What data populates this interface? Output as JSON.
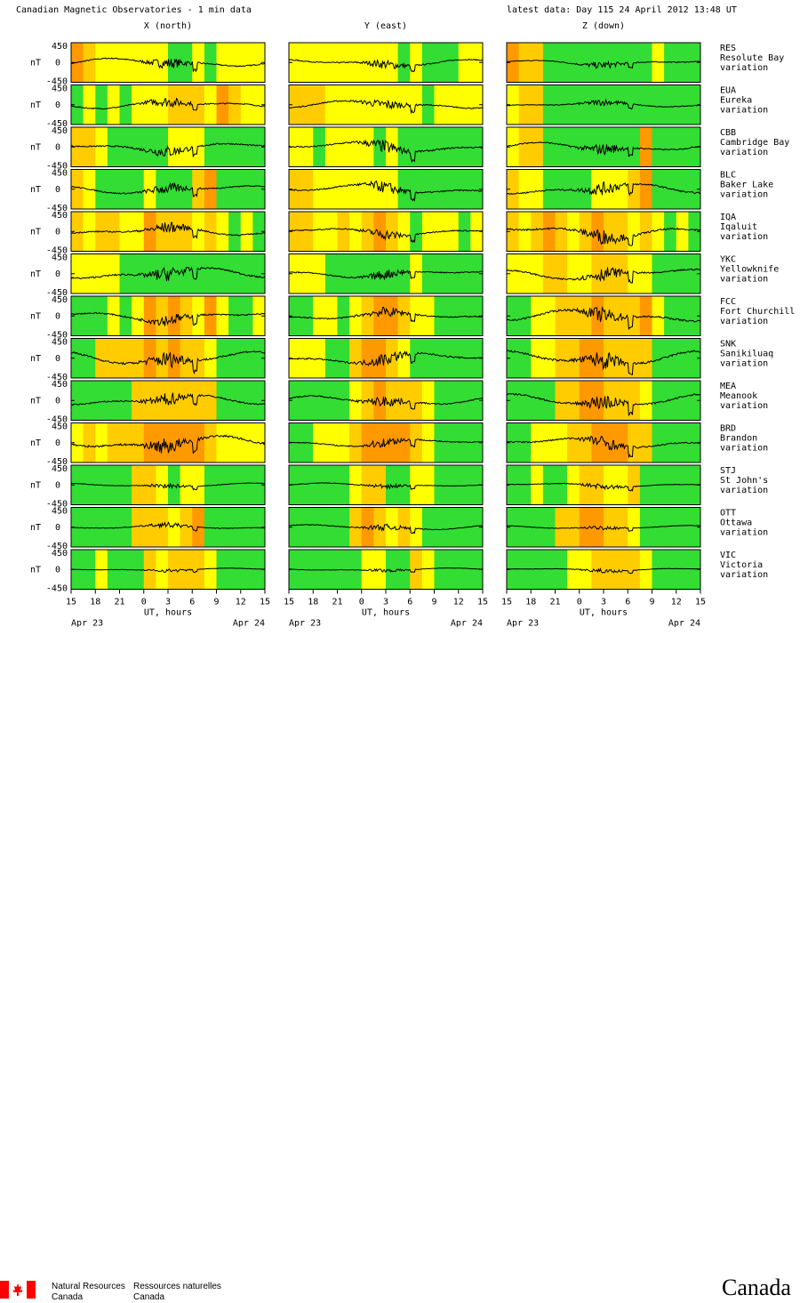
{
  "header": {
    "title": "Canadian Magnetic Observatories - 1 min data",
    "latest": "latest data: Day 115   24 April 2012 13:48 UT"
  },
  "chart_data": {
    "type": "line",
    "columns": [
      "X (north)",
      "Y (east)",
      "Z (down)"
    ],
    "unit": "nT",
    "ylim": [
      -450,
      450
    ],
    "yticks": [
      "450",
      "0",
      "-450"
    ],
    "x_ticks": [
      "15",
      "18",
      "21",
      "0",
      "3",
      "6",
      "9",
      "12",
      "15"
    ],
    "xlabel": "UT, hours",
    "date_start": "Apr 23",
    "date_end": "Apr 24",
    "activity_colors": {
      "quiet": "#33dd33",
      "unsettled": "#ffff00",
      "active": "#ffcc00",
      "storm": "#ff9900"
    },
    "stations": [
      {
        "code": "RES",
        "name": "Resolute Bay",
        "label": "variation",
        "amp": [
          180,
          150,
          120
        ],
        "bands": [
          [
            "#ff9900",
            "#ffcc00",
            "#ffff00",
            "#ffff00",
            "#ffff00",
            "#ffff00",
            "#ffff00",
            "#ffff00",
            "#33dd33",
            "#33dd33",
            "#ffff00",
            "#33dd33",
            "#ffff00",
            "#ffff00",
            "#ffff00",
            "#ffff00"
          ],
          [
            "#ffff00",
            "#ffff00",
            "#ffff00",
            "#ffff00",
            "#ffff00",
            "#ffff00",
            "#ffff00",
            "#ffff00",
            "#ffff00",
            "#33dd33",
            "#ffff00",
            "#33dd33",
            "#33dd33",
            "#33dd33",
            "#ffff00",
            "#ffff00"
          ],
          [
            "#ff9900",
            "#ffcc00",
            "#ffcc00",
            "#33dd33",
            "#33dd33",
            "#33dd33",
            "#33dd33",
            "#33dd33",
            "#33dd33",
            "#33dd33",
            "#33dd33",
            "#33dd33",
            "#ffff00",
            "#33dd33",
            "#33dd33",
            "#33dd33"
          ]
        ]
      },
      {
        "code": "EUA",
        "name": "Eureka",
        "label": "variation",
        "amp": [
          170,
          170,
          110
        ],
        "bands": [
          [
            "#33dd33",
            "#ffff00",
            "#33dd33",
            "#ffff00",
            "#33dd33",
            "#ffff00",
            "#ffff00",
            "#ffff00",
            "#ffcc00",
            "#ffcc00",
            "#ffcc00",
            "#ffff00",
            "#ff9900",
            "#ffcc00",
            "#ffff00",
            "#ffff00"
          ],
          [
            "#ffcc00",
            "#ffcc00",
            "#ffcc00",
            "#ffff00",
            "#ffff00",
            "#ffff00",
            "#ffff00",
            "#ffff00",
            "#ffff00",
            "#ffff00",
            "#ffff00",
            "#33dd33",
            "#ffff00",
            "#ffff00",
            "#ffff00",
            "#ffff00"
          ],
          [
            "#ffff00",
            "#ffcc00",
            "#ffcc00",
            "#33dd33",
            "#33dd33",
            "#33dd33",
            "#33dd33",
            "#33dd33",
            "#33dd33",
            "#33dd33",
            "#33dd33",
            "#33dd33",
            "#33dd33",
            "#33dd33",
            "#33dd33",
            "#33dd33"
          ]
        ]
      },
      {
        "code": "CBB",
        "name": "Cambridge Bay",
        "label": "variation",
        "amp": [
          200,
          220,
          190
        ],
        "bands": [
          [
            "#ffcc00",
            "#ffcc00",
            "#ffff00",
            "#33dd33",
            "#33dd33",
            "#33dd33",
            "#33dd33",
            "#33dd33",
            "#ffff00",
            "#ffff00",
            "#ffff00",
            "#33dd33",
            "#33dd33",
            "#33dd33",
            "#33dd33",
            "#33dd33"
          ],
          [
            "#ffff00",
            "#ffff00",
            "#33dd33",
            "#ffff00",
            "#ffff00",
            "#ffff00",
            "#ffff00",
            "#33dd33",
            "#ffff00",
            "#33dd33",
            "#33dd33",
            "#33dd33",
            "#33dd33",
            "#33dd33",
            "#33dd33",
            "#33dd33"
          ],
          [
            "#ffff00",
            "#ffcc00",
            "#ffcc00",
            "#33dd33",
            "#33dd33",
            "#33dd33",
            "#33dd33",
            "#33dd33",
            "#33dd33",
            "#33dd33",
            "#33dd33",
            "#ff9900",
            "#33dd33",
            "#33dd33",
            "#33dd33",
            "#33dd33"
          ]
        ]
      },
      {
        "code": "BLC",
        "name": "Baker Lake",
        "label": "variation",
        "amp": [
          180,
          200,
          220
        ],
        "bands": [
          [
            "#ffcc00",
            "#ffff00",
            "#33dd33",
            "#33dd33",
            "#33dd33",
            "#33dd33",
            "#ffff00",
            "#33dd33",
            "#33dd33",
            "#33dd33",
            "#ffcc00",
            "#ff9900",
            "#33dd33",
            "#33dd33",
            "#33dd33",
            "#33dd33"
          ],
          [
            "#ffcc00",
            "#ffcc00",
            "#ffff00",
            "#ffff00",
            "#ffff00",
            "#ffff00",
            "#ffff00",
            "#ffff00",
            "#ffff00",
            "#33dd33",
            "#33dd33",
            "#33dd33",
            "#33dd33",
            "#33dd33",
            "#33dd33",
            "#33dd33"
          ],
          [
            "#ffcc00",
            "#ffff00",
            "#ffff00",
            "#33dd33",
            "#33dd33",
            "#33dd33",
            "#33dd33",
            "#ffff00",
            "#ffff00",
            "#ffff00",
            "#ffcc00",
            "#ff9900",
            "#33dd33",
            "#33dd33",
            "#33dd33",
            "#33dd33"
          ]
        ]
      },
      {
        "code": "IQA",
        "name": "Iqaluit",
        "label": "variation",
        "amp": [
          190,
          170,
          260
        ],
        "bands": [
          [
            "#ffcc00",
            "#ffff00",
            "#ffcc00",
            "#ffcc00",
            "#ffff00",
            "#ffff00",
            "#ff9900",
            "#ffcc00",
            "#ffcc00",
            "#ffcc00",
            "#ffff00",
            "#ffcc00",
            "#ffff00",
            "#33dd33",
            "#ffff00",
            "#33dd33"
          ],
          [
            "#ffcc00",
            "#ffcc00",
            "#ffff00",
            "#ffff00",
            "#ffcc00",
            "#ffff00",
            "#ffcc00",
            "#ff9900",
            "#ffcc00",
            "#ffff00",
            "#33dd33",
            "#ffff00",
            "#ffff00",
            "#ffff00",
            "#33dd33",
            "#ffff00"
          ],
          [
            "#ffcc00",
            "#ffff00",
            "#ffcc00",
            "#ff9900",
            "#ffcc00",
            "#ffff00",
            "#ffcc00",
            "#ff9900",
            "#ffcc00",
            "#ffcc00",
            "#ffff00",
            "#ffcc00",
            "#ffff00",
            "#33dd33",
            "#ffff00",
            "#33dd33"
          ]
        ]
      },
      {
        "code": "YKC",
        "name": "Yellowknife",
        "label": "variation",
        "amp": [
          240,
          160,
          230
        ],
        "bands": [
          [
            "#ffff00",
            "#ffff00",
            "#ffff00",
            "#ffff00",
            "#33dd33",
            "#33dd33",
            "#33dd33",
            "#33dd33",
            "#33dd33",
            "#33dd33",
            "#33dd33",
            "#33dd33",
            "#33dd33",
            "#33dd33",
            "#33dd33",
            "#33dd33"
          ],
          [
            "#ffff00",
            "#ffff00",
            "#ffff00",
            "#33dd33",
            "#33dd33",
            "#33dd33",
            "#33dd33",
            "#33dd33",
            "#33dd33",
            "#33dd33",
            "#ffff00",
            "#33dd33",
            "#33dd33",
            "#33dd33",
            "#33dd33",
            "#33dd33"
          ],
          [
            "#ffff00",
            "#ffff00",
            "#ffff00",
            "#ffcc00",
            "#ffcc00",
            "#ffff00",
            "#ffff00",
            "#ffcc00",
            "#ffcc00",
            "#ffcc00",
            "#ffff00",
            "#ffff00",
            "#33dd33",
            "#33dd33",
            "#33dd33",
            "#33dd33"
          ]
        ]
      },
      {
        "code": "FCC",
        "name": "Fort Churchill",
        "label": "variation",
        "amp": [
          200,
          170,
          260
        ],
        "bands": [
          [
            "#33dd33",
            "#33dd33",
            "#33dd33",
            "#ffff00",
            "#33dd33",
            "#ffff00",
            "#ff9900",
            "#ffcc00",
            "#ff9900",
            "#ffcc00",
            "#ffff00",
            "#ff9900",
            "#ffff00",
            "#33dd33",
            "#33dd33",
            "#ffff00"
          ],
          [
            "#33dd33",
            "#33dd33",
            "#ffff00",
            "#ffff00",
            "#33dd33",
            "#ffff00",
            "#ffcc00",
            "#ff9900",
            "#ff9900",
            "#ffcc00",
            "#ffff00",
            "#ffff00",
            "#33dd33",
            "#33dd33",
            "#33dd33",
            "#33dd33"
          ],
          [
            "#33dd33",
            "#33dd33",
            "#ffff00",
            "#ffff00",
            "#ffcc00",
            "#ffcc00",
            "#ffcc00",
            "#ff9900",
            "#ffcc00",
            "#ffcc00",
            "#ffcc00",
            "#ff9900",
            "#ffff00",
            "#33dd33",
            "#33dd33",
            "#33dd33"
          ]
        ]
      },
      {
        "code": "SNK",
        "name": "Sanikiluaq",
        "label": "variation",
        "amp": [
          280,
          230,
          300
        ],
        "bands": [
          [
            "#33dd33",
            "#33dd33",
            "#ffcc00",
            "#ffcc00",
            "#ffcc00",
            "#ffcc00",
            "#ff9900",
            "#ffcc00",
            "#ff9900",
            "#ffcc00",
            "#ffcc00",
            "#ffff00",
            "#33dd33",
            "#33dd33",
            "#33dd33",
            "#33dd33"
          ],
          [
            "#ffff00",
            "#ffff00",
            "#ffff00",
            "#33dd33",
            "#33dd33",
            "#ffcc00",
            "#ff9900",
            "#ff9900",
            "#ffcc00",
            "#ffff00",
            "#33dd33",
            "#33dd33",
            "#33dd33",
            "#33dd33",
            "#33dd33",
            "#33dd33"
          ],
          [
            "#33dd33",
            "#33dd33",
            "#ffff00",
            "#ffff00",
            "#ffcc00",
            "#ffcc00",
            "#ff9900",
            "#ff9900",
            "#ffcc00",
            "#ffcc00",
            "#ffcc00",
            "#ffcc00",
            "#33dd33",
            "#33dd33",
            "#33dd33",
            "#33dd33"
          ]
        ]
      },
      {
        "code": "MEA",
        "name": "Meanook",
        "label": "variation",
        "amp": [
          220,
          190,
          260
        ],
        "bands": [
          [
            "#33dd33",
            "#33dd33",
            "#33dd33",
            "#33dd33",
            "#33dd33",
            "#ffcc00",
            "#ffcc00",
            "#ffcc00",
            "#ffcc00",
            "#ffcc00",
            "#ffcc00",
            "#ffcc00",
            "#33dd33",
            "#33dd33",
            "#33dd33",
            "#33dd33"
          ],
          [
            "#33dd33",
            "#33dd33",
            "#33dd33",
            "#33dd33",
            "#33dd33",
            "#ffff00",
            "#ffcc00",
            "#ff9900",
            "#ffcc00",
            "#ffcc00",
            "#ffcc00",
            "#ffff00",
            "#33dd33",
            "#33dd33",
            "#33dd33",
            "#33dd33"
          ],
          [
            "#33dd33",
            "#33dd33",
            "#33dd33",
            "#33dd33",
            "#ffcc00",
            "#ffcc00",
            "#ff9900",
            "#ff9900",
            "#ffcc00",
            "#ffcc00",
            "#ffcc00",
            "#ffff00",
            "#33dd33",
            "#33dd33",
            "#33dd33",
            "#33dd33"
          ]
        ]
      },
      {
        "code": "BRD",
        "name": "Brandon",
        "label": "variation",
        "amp": [
          280,
          160,
          220
        ],
        "bands": [
          [
            "#ffff00",
            "#ffcc00",
            "#ffff00",
            "#ffcc00",
            "#ffcc00",
            "#ffcc00",
            "#ff9900",
            "#ff9900",
            "#ff9900",
            "#ff9900",
            "#ff9900",
            "#ffcc00",
            "#ffff00",
            "#ffff00",
            "#ffff00",
            "#ffff00"
          ],
          [
            "#33dd33",
            "#33dd33",
            "#ffff00",
            "#ffff00",
            "#ffff00",
            "#ffcc00",
            "#ff9900",
            "#ff9900",
            "#ff9900",
            "#ff9900",
            "#ffcc00",
            "#ffff00",
            "#33dd33",
            "#33dd33",
            "#33dd33",
            "#33dd33"
          ],
          [
            "#33dd33",
            "#33dd33",
            "#ffff00",
            "#ffff00",
            "#ffff00",
            "#ffcc00",
            "#ffcc00",
            "#ff9900",
            "#ff9900",
            "#ff9900",
            "#ffcc00",
            "#ffcc00",
            "#33dd33",
            "#33dd33",
            "#33dd33",
            "#33dd33"
          ]
        ]
      },
      {
        "code": "STJ",
        "name": "St John's",
        "label": "variation",
        "amp": [
          80,
          80,
          90
        ],
        "bands": [
          [
            "#33dd33",
            "#33dd33",
            "#33dd33",
            "#33dd33",
            "#33dd33",
            "#ffcc00",
            "#ffcc00",
            "#ffff00",
            "#33dd33",
            "#ffff00",
            "#ffff00",
            "#33dd33",
            "#33dd33",
            "#33dd33",
            "#33dd33",
            "#33dd33"
          ],
          [
            "#33dd33",
            "#33dd33",
            "#33dd33",
            "#33dd33",
            "#33dd33",
            "#ffff00",
            "#ffcc00",
            "#ffcc00",
            "#33dd33",
            "#33dd33",
            "#ffff00",
            "#ffff00",
            "#33dd33",
            "#33dd33",
            "#33dd33",
            "#33dd33"
          ],
          [
            "#33dd33",
            "#33dd33",
            "#ffff00",
            "#33dd33",
            "#33dd33",
            "#ffff00",
            "#ffcc00",
            "#ffcc00",
            "#ffff00",
            "#ffff00",
            "#ffcc00",
            "#33dd33",
            "#33dd33",
            "#33dd33",
            "#33dd33",
            "#33dd33"
          ]
        ]
      },
      {
        "code": "OTT",
        "name": "Ottawa",
        "label": "variation",
        "amp": [
          90,
          110,
          70
        ],
        "bands": [
          [
            "#33dd33",
            "#33dd33",
            "#33dd33",
            "#33dd33",
            "#33dd33",
            "#ffcc00",
            "#ffcc00",
            "#ffcc00",
            "#ffff00",
            "#ffcc00",
            "#ff9900",
            "#33dd33",
            "#33dd33",
            "#33dd33",
            "#33dd33",
            "#33dd33"
          ],
          [
            "#33dd33",
            "#33dd33",
            "#33dd33",
            "#33dd33",
            "#33dd33",
            "#ffcc00",
            "#ff9900",
            "#ffcc00",
            "#ffff00",
            "#ffcc00",
            "#ffff00",
            "#33dd33",
            "#33dd33",
            "#33dd33",
            "#33dd33",
            "#33dd33"
          ],
          [
            "#33dd33",
            "#33dd33",
            "#33dd33",
            "#33dd33",
            "#ffcc00",
            "#ffcc00",
            "#ff9900",
            "#ff9900",
            "#ffcc00",
            "#ffcc00",
            "#ffff00",
            "#33dd33",
            "#33dd33",
            "#33dd33",
            "#33dd33",
            "#33dd33"
          ]
        ]
      },
      {
        "code": "VIC",
        "name": "Victoria",
        "label": "variation",
        "amp": [
          60,
          60,
          70
        ],
        "bands": [
          [
            "#33dd33",
            "#33dd33",
            "#ffff00",
            "#33dd33",
            "#33dd33",
            "#33dd33",
            "#ffcc00",
            "#ffff00",
            "#ffcc00",
            "#ffcc00",
            "#ffcc00",
            "#ffff00",
            "#33dd33",
            "#33dd33",
            "#33dd33",
            "#33dd33"
          ],
          [
            "#33dd33",
            "#33dd33",
            "#33dd33",
            "#33dd33",
            "#33dd33",
            "#33dd33",
            "#ffff00",
            "#ffff00",
            "#33dd33",
            "#33dd33",
            "#ffcc00",
            "#ffff00",
            "#33dd33",
            "#33dd33",
            "#33dd33",
            "#33dd33"
          ],
          [
            "#33dd33",
            "#33dd33",
            "#33dd33",
            "#33dd33",
            "#33dd33",
            "#ffff00",
            "#ffff00",
            "#ffcc00",
            "#ffcc00",
            "#ffcc00",
            "#ffcc00",
            "#ffff00",
            "#33dd33",
            "#33dd33",
            "#33dd33",
            "#33dd33"
          ]
        ]
      }
    ]
  },
  "footer": {
    "nrcan_en_1": "Natural Resources",
    "nrcan_en_2": "Canada",
    "nrcan_fr_1": "Ressources naturelles",
    "nrcan_fr_2": "Canada",
    "wordmark": "Canada",
    "flag_color": "#ff0000"
  }
}
